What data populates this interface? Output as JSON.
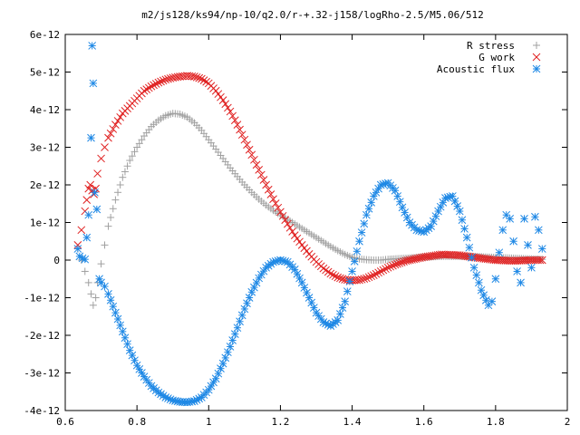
{
  "chart_data": {
    "type": "scatter",
    "title": "m2/js128/ks94/np-10/q2.0/r-+.32-j158/logRho-2.5/M5.06/512",
    "xlim": [
      0.6,
      2.0
    ],
    "ylim": [
      -4e-12,
      6e-12
    ],
    "x_ticks": [
      "0.6",
      "0.8",
      "1",
      "1.2",
      "1.4",
      "1.6",
      "1.8",
      "2"
    ],
    "x_tick_values": [
      0.6,
      0.8,
      1.0,
      1.2,
      1.4,
      1.6,
      1.8,
      2.0
    ],
    "y_ticks": [
      "-4e-12",
      "-3e-12",
      "-2e-12",
      "-1e-12",
      "0",
      "1e-12",
      "2e-12",
      "3e-12",
      "4e-12",
      "5e-12",
      "6e-12"
    ],
    "y_tick_values": [
      -4e-12,
      -3e-12,
      -2e-12,
      -1e-12,
      0,
      1e-12,
      2e-12,
      3e-12,
      4e-12,
      5e-12,
      6e-12
    ],
    "grid": false,
    "legend_position": "top-right",
    "series": [
      {
        "name": "R stress",
        "marker": "plus",
        "color": "#a0a0a0",
        "x": [
          0.635,
          0.645,
          0.655,
          0.665,
          0.672,
          0.678,
          0.685,
          0.69,
          0.7,
          0.71,
          0.72,
          0.74,
          0.76,
          0.78,
          0.8,
          0.82,
          0.84,
          0.86,
          0.88,
          0.9,
          0.92,
          0.94,
          0.96,
          0.98,
          1.0,
          1.02,
          1.04,
          1.06,
          1.08,
          1.1,
          1.12,
          1.14,
          1.16,
          1.18,
          1.2,
          1.22,
          1.24,
          1.26,
          1.28,
          1.3,
          1.32,
          1.34,
          1.36,
          1.38,
          1.4,
          1.42,
          1.44,
          1.46,
          1.48,
          1.5,
          1.55,
          1.6,
          1.65,
          1.7,
          1.75,
          1.8,
          1.85,
          1.9,
          1.93
        ],
        "y": [
          3e-13,
          0,
          -3e-13,
          -6e-13,
          -9e-13,
          -1.2e-12,
          -1e-12,
          -6e-13,
          -1e-13,
          4e-13,
          9e-13,
          1.6e-12,
          2.2e-12,
          2.65e-12,
          3e-12,
          3.3e-12,
          3.55e-12,
          3.72e-12,
          3.84e-12,
          3.9e-12,
          3.88e-12,
          3.8e-12,
          3.65e-12,
          3.45e-12,
          3.2e-12,
          2.95e-12,
          2.7e-12,
          2.45e-12,
          2.22e-12,
          2e-12,
          1.8e-12,
          1.62e-12,
          1.46e-12,
          1.32e-12,
          1.2e-12,
          1.08e-12,
          9.6e-13,
          8.4e-13,
          7.2e-13,
          6e-13,
          4.8e-13,
          3.6e-13,
          2.5e-13,
          1.5e-13,
          7e-14,
          3e-14,
          1e-14,
          0,
          0,
          2e-14,
          5e-14,
          8e-14,
          1e-13,
          1e-13,
          9e-14,
          7e-14,
          5e-14,
          3e-14,
          2e-14
        ]
      },
      {
        "name": "G work",
        "marker": "cross",
        "color": "#e02020",
        "x": [
          0.635,
          0.645,
          0.655,
          0.66,
          0.665,
          0.67,
          0.675,
          0.68,
          0.685,
          0.69,
          0.7,
          0.71,
          0.72,
          0.74,
          0.76,
          0.78,
          0.8,
          0.82,
          0.84,
          0.86,
          0.88,
          0.9,
          0.92,
          0.94,
          0.96,
          0.98,
          1.0,
          1.02,
          1.04,
          1.06,
          1.08,
          1.1,
          1.12,
          1.14,
          1.16,
          1.18,
          1.2,
          1.22,
          1.24,
          1.26,
          1.28,
          1.3,
          1.32,
          1.34,
          1.36,
          1.38,
          1.4,
          1.42,
          1.44,
          1.46,
          1.48,
          1.5,
          1.52,
          1.55,
          1.6,
          1.65,
          1.7,
          1.75,
          1.8,
          1.85,
          1.9,
          1.93
        ],
        "y": [
          4e-13,
          8e-13,
          1.3e-12,
          1.6e-12,
          1.9e-12,
          2e-12,
          1.85e-12,
          1.75e-12,
          1.9e-12,
          2.3e-12,
          2.7e-12,
          3e-12,
          3.25e-12,
          3.6e-12,
          3.9e-12,
          4.1e-12,
          4.3e-12,
          4.5e-12,
          4.62e-12,
          4.72e-12,
          4.8e-12,
          4.85e-12,
          4.88e-12,
          4.9e-12,
          4.88e-12,
          4.82e-12,
          4.7e-12,
          4.5e-12,
          4.25e-12,
          3.95e-12,
          3.6e-12,
          3.2e-12,
          2.8e-12,
          2.4e-12,
          2e-12,
          1.62e-12,
          1.28e-12,
          9.6e-13,
          6.6e-13,
          4e-13,
          1.6e-13,
          -5e-14,
          -2.2e-13,
          -3.6e-13,
          -4.6e-13,
          -5.2e-13,
          -5.4e-13,
          -5.3e-13,
          -4.8e-13,
          -4e-13,
          -3e-13,
          -2e-13,
          -1.2e-13,
          -2e-14,
          8e-14,
          1.5e-13,
          1.3e-13,
          6e-14,
          0,
          -2e-14,
          0,
          0
        ]
      },
      {
        "name": "Acoustic flux",
        "marker": "star",
        "color": "#1e88e5",
        "x": [
          0.635,
          0.64,
          0.648,
          0.655,
          0.66,
          0.665,
          0.672,
          0.675,
          0.678,
          0.682,
          0.688,
          0.695,
          0.7,
          0.71,
          0.72,
          0.74,
          0.76,
          0.78,
          0.8,
          0.82,
          0.84,
          0.86,
          0.88,
          0.9,
          0.92,
          0.94,
          0.96,
          0.98,
          1.0,
          1.02,
          1.04,
          1.06,
          1.08,
          1.1,
          1.12,
          1.14,
          1.16,
          1.18,
          1.2,
          1.22,
          1.24,
          1.26,
          1.28,
          1.3,
          1.32,
          1.34,
          1.36,
          1.38,
          1.4,
          1.42,
          1.44,
          1.46,
          1.48,
          1.5,
          1.52,
          1.54,
          1.56,
          1.58,
          1.6,
          1.62,
          1.64,
          1.66,
          1.68,
          1.7,
          1.72,
          1.74,
          1.76,
          1.78,
          1.79,
          1.8,
          1.81,
          1.82,
          1.83,
          1.84,
          1.85,
          1.86,
          1.87,
          1.88,
          1.89,
          1.9,
          1.91,
          1.92,
          1.93
        ],
        "y": [
          3e-13,
          1e-13,
          5e-14,
          2e-14,
          6e-13,
          1.2e-12,
          3.25e-12,
          5.7e-12,
          4.7e-12,
          1.8e-12,
          1.35e-12,
          -5e-13,
          -6e-13,
          -7e-13,
          -9e-13,
          -1.4e-12,
          -1.9e-12,
          -2.4e-12,
          -2.8e-12,
          -3.1e-12,
          -3.35e-12,
          -3.52e-12,
          -3.65e-12,
          -3.73e-12,
          -3.77e-12,
          -3.78e-12,
          -3.75e-12,
          -3.65e-12,
          -3.45e-12,
          -3.15e-12,
          -2.75e-12,
          -2.3e-12,
          -1.8e-12,
          -1.3e-12,
          -8.5e-13,
          -4.8e-13,
          -2e-13,
          -5e-14,
          0,
          -5e-14,
          -2.5e-13,
          -6e-13,
          -1e-12,
          -1.4e-12,
          -1.65e-12,
          -1.75e-12,
          -1.6e-12,
          -1.1e-12,
          -3e-13,
          5e-13,
          1.2e-12,
          1.7e-12,
          2e-12,
          2.05e-12,
          1.85e-12,
          1.4e-12,
          1e-12,
          8e-13,
          7.5e-13,
          9e-13,
          1.3e-12,
          1.65e-12,
          1.7e-12,
          1.3e-12,
          6e-13,
          -2e-13,
          -8e-13,
          -1.2e-12,
          -1.1e-12,
          -5e-13,
          2e-13,
          8e-13,
          1.2e-12,
          1.1e-12,
          5e-13,
          -3e-13,
          -6e-13,
          1.1e-12,
          4e-13,
          -2e-13,
          1.15e-12,
          8e-13,
          3e-13
        ]
      }
    ]
  }
}
